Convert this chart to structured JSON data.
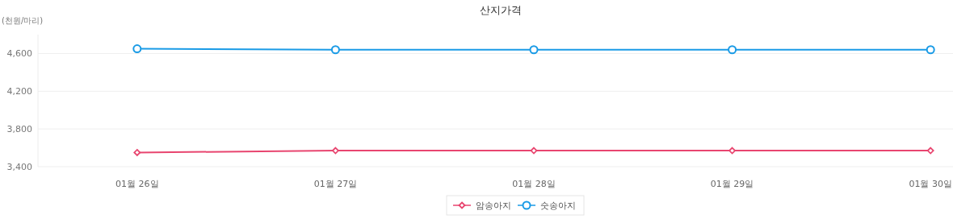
{
  "chart_data": {
    "type": "line",
    "title": "산지가격",
    "ylabel": "(천원/마리)",
    "categories": [
      "01월 26일",
      "01월 27일",
      "01월 28일",
      "01월 29일",
      "01월 30일"
    ],
    "series": [
      {
        "name": "암송아지",
        "color": "#e8456f",
        "marker": "diamond",
        "values": [
          3550,
          3570,
          3570,
          3570,
          3570
        ]
      },
      {
        "name": "숫송아지",
        "color": "#1a9be6",
        "marker": "circle",
        "values": [
          4650,
          4640,
          4640,
          4640,
          4640
        ]
      }
    ],
    "ylim": [
      3400,
      4800
    ],
    "yticks": [
      {
        "value": 3400,
        "label": "3,400"
      },
      {
        "value": 3800,
        "label": "3,800"
      },
      {
        "value": 4200,
        "label": "4,200"
      },
      {
        "value": 4600,
        "label": "4,600"
      }
    ],
    "grid": "y",
    "legend": "bottom",
    "line_style": "solid"
  }
}
